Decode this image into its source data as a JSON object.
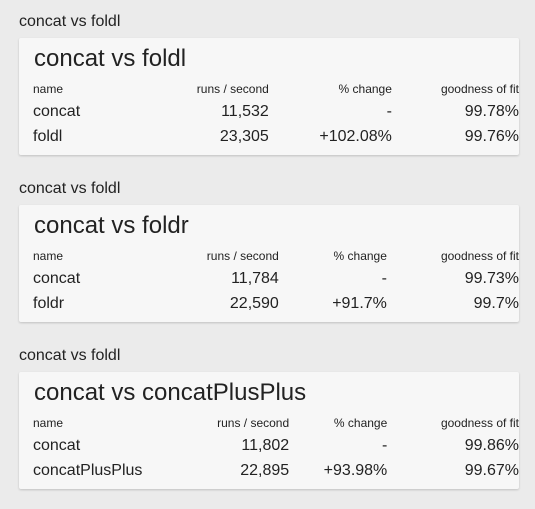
{
  "sections": [
    {
      "heading": "concat vs foldl",
      "title": "concat vs foldl",
      "columns": [
        "name",
        "runs / second",
        "% change",
        "goodness of fit"
      ],
      "rows": [
        {
          "name": "concat",
          "runs": "11,532",
          "change": "-",
          "fit": "99.78%"
        },
        {
          "name": "foldl",
          "runs": "23,305",
          "change": "+102.08%",
          "fit": "99.76%"
        }
      ]
    },
    {
      "heading": "concat vs foldl",
      "title": "concat vs foldr",
      "columns": [
        "name",
        "runs / second",
        "% change",
        "goodness of fit"
      ],
      "rows": [
        {
          "name": "concat",
          "runs": "11,784",
          "change": "-",
          "fit": "99.73%"
        },
        {
          "name": "foldr",
          "runs": "22,590",
          "change": "+91.7%",
          "fit": "99.7%"
        }
      ]
    },
    {
      "heading": "concat vs foldl",
      "title": "concat vs concatPlusPlus",
      "columns": [
        "name",
        "runs / second",
        "% change",
        "goodness of fit"
      ],
      "rows": [
        {
          "name": "concat",
          "runs": "11,802",
          "change": "-",
          "fit": "99.86%"
        },
        {
          "name": "concatPlusPlus",
          "runs": "22,895",
          "change": "+93.98%",
          "fit": "99.67%"
        }
      ]
    }
  ]
}
